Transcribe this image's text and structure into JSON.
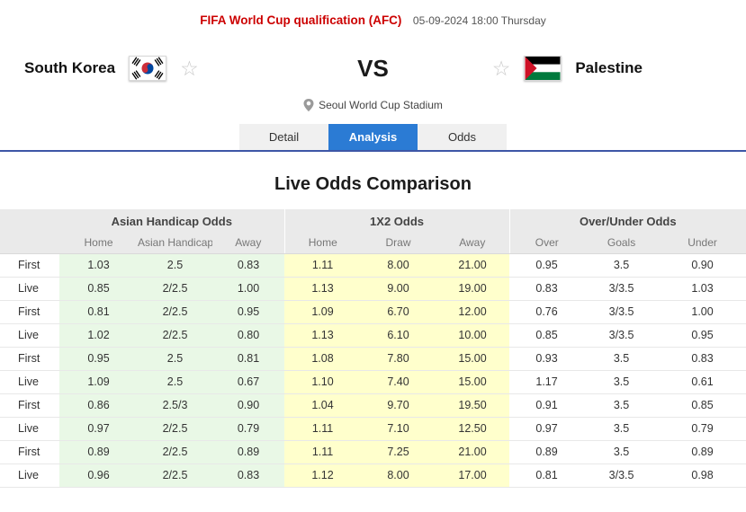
{
  "header": {
    "competition": "FIFA World Cup qualification (AFC)",
    "datetime": "05-09-2024 18:00 Thursday"
  },
  "match": {
    "home_team": "South Korea",
    "away_team": "Palestine",
    "vs_label": "VS",
    "venue": "Seoul World Cup Stadium"
  },
  "icons": {
    "favorite_star": "☆"
  },
  "tabs": [
    {
      "label": "Detail",
      "active": false
    },
    {
      "label": "Analysis",
      "active": true
    },
    {
      "label": "Odds",
      "active": false
    }
  ],
  "section_title": "Live Odds Comparison",
  "odds_table": {
    "groups": [
      "Asian Handicap Odds",
      "1X2 Odds",
      "Over/Under Odds"
    ],
    "columns": [
      "Home",
      "Asian Handicap",
      "Away",
      "Home",
      "Draw",
      "Away",
      "Over",
      "Goals",
      "Under"
    ],
    "rows": [
      {
        "label": "First",
        "ah": [
          "1.03",
          "2.5",
          "0.83"
        ],
        "x12": [
          "1.11",
          "8.00",
          "21.00"
        ],
        "ou": [
          "0.95",
          "3.5",
          "0.90"
        ]
      },
      {
        "label": "Live",
        "ah": [
          "0.85",
          "2/2.5",
          "1.00"
        ],
        "x12": [
          "1.13",
          "9.00",
          "19.00"
        ],
        "ou": [
          "0.83",
          "3/3.5",
          "1.03"
        ]
      },
      {
        "label": "First",
        "ah": [
          "0.81",
          "2/2.5",
          "0.95"
        ],
        "x12": [
          "1.09",
          "6.70",
          "12.00"
        ],
        "ou": [
          "0.76",
          "3/3.5",
          "1.00"
        ]
      },
      {
        "label": "Live",
        "ah": [
          "1.02",
          "2/2.5",
          "0.80"
        ],
        "x12": [
          "1.13",
          "6.10",
          "10.00"
        ],
        "ou": [
          "0.85",
          "3/3.5",
          "0.95"
        ]
      },
      {
        "label": "First",
        "ah": [
          "0.95",
          "2.5",
          "0.81"
        ],
        "x12": [
          "1.08",
          "7.80",
          "15.00"
        ],
        "ou": [
          "0.93",
          "3.5",
          "0.83"
        ]
      },
      {
        "label": "Live",
        "ah": [
          "1.09",
          "2.5",
          "0.67"
        ],
        "x12": [
          "1.10",
          "7.40",
          "15.00"
        ],
        "ou": [
          "1.17",
          "3.5",
          "0.61"
        ]
      },
      {
        "label": "First",
        "ah": [
          "0.86",
          "2.5/3",
          "0.90"
        ],
        "x12": [
          "1.04",
          "9.70",
          "19.50"
        ],
        "ou": [
          "0.91",
          "3.5",
          "0.85"
        ]
      },
      {
        "label": "Live",
        "ah": [
          "0.97",
          "2/2.5",
          "0.79"
        ],
        "x12": [
          "1.11",
          "7.10",
          "12.50"
        ],
        "ou": [
          "0.97",
          "3.5",
          "0.79"
        ]
      },
      {
        "label": "First",
        "ah": [
          "0.89",
          "2/2.5",
          "0.89"
        ],
        "x12": [
          "1.11",
          "7.25",
          "21.00"
        ],
        "ou": [
          "0.89",
          "3.5",
          "0.89"
        ]
      },
      {
        "label": "Live",
        "ah": [
          "0.96",
          "2/2.5",
          "0.83"
        ],
        "x12": [
          "1.12",
          "8.00",
          "17.00"
        ],
        "ou": [
          "0.81",
          "3/3.5",
          "0.98"
        ]
      }
    ]
  },
  "colors": {
    "competition_red": "#cc0000",
    "active_tab_blue": "#2b7bd4",
    "divider_blue": "#3d56a6",
    "handicap_green": "#e9f8e6",
    "x12_yellow": "#ffffcc",
    "header_gray": "#eaeaea"
  }
}
